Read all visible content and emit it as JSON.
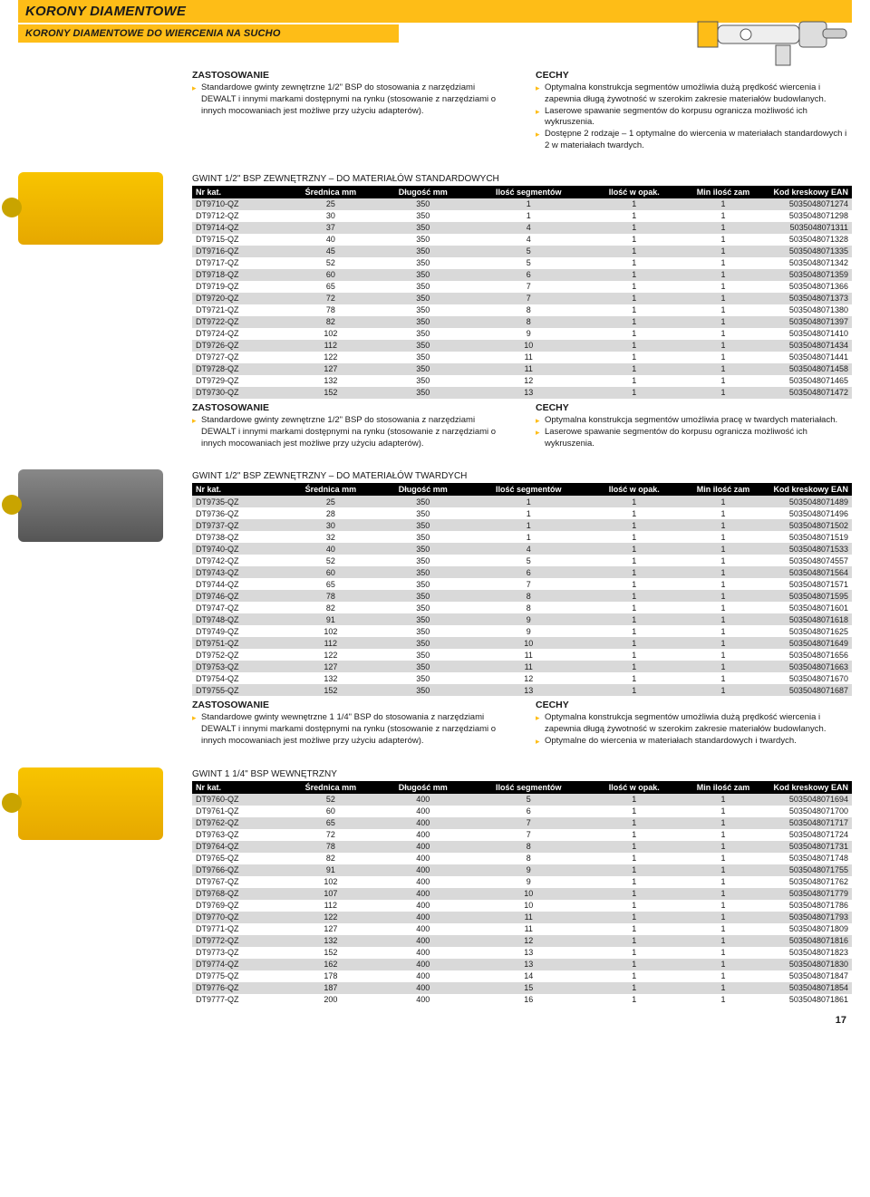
{
  "page_number": "17",
  "title_main": "KORONY DIAMENTOWE",
  "title_sub": "KORONY DIAMENTOWE DO WIERCENIA NA SUCHO",
  "columns": [
    "Nr kat.",
    "Średnica mm",
    "Długość mm",
    "Ilość segmentów",
    "Ilość w opak.",
    "Min ilość zam",
    "Kod kreskowy EAN"
  ],
  "col_align": [
    "l",
    "c",
    "c",
    "c",
    "c",
    "c",
    "r"
  ],
  "col_widths": [
    "14%",
    "14%",
    "14%",
    "18%",
    "14%",
    "13%",
    "13%"
  ],
  "colors": {
    "accent": "#febd17",
    "row_odd": "#d9d9d9",
    "row_even": "#ffffff",
    "header_bg": "#000000",
    "header_fg": "#ffffff"
  },
  "sections": [
    {
      "thumb": "yellow",
      "text": {
        "zast_h": "ZASTOSOWANIE",
        "zast": [
          "Standardowe gwinty zewnętrzne 1/2\" BSP do stosowania z narzędziami DEWALT i innymi markami dostępnymi na rynku (stosowanie z narzędziami o innych mocowaniach jest możliwe przy użyciu adapterów)."
        ],
        "cechy_h": "CECHY",
        "cechy": [
          "Optymalna konstrukcja segmentów umożliwia dużą prędkość wiercenia i zapewnia długą żywotność w szerokim zakresie materiałów budowlanych.",
          "Laserowe spawanie segmentów do korpusu ogranicza możliwość ich wykruszenia.",
          "Dostępne 2 rodzaje – 1 optymalne do wiercenia w materiałach standardowych i 2 w materiałach twardych."
        ]
      },
      "table_title": "GWINT 1/2\" BSP ZEWNĘTRZNY – DO MATERIAŁÓW STANDARDOWYCH",
      "rows": [
        [
          "DT9710-QZ",
          "25",
          "350",
          "1",
          "1",
          "1",
          "5035048071274"
        ],
        [
          "DT9712-QZ",
          "30",
          "350",
          "1",
          "1",
          "1",
          "5035048071298"
        ],
        [
          "DT9714-QZ",
          "37",
          "350",
          "4",
          "1",
          "1",
          "5035048071311"
        ],
        [
          "DT9715-QZ",
          "40",
          "350",
          "4",
          "1",
          "1",
          "5035048071328"
        ],
        [
          "DT9716-QZ",
          "45",
          "350",
          "5",
          "1",
          "1",
          "5035048071335"
        ],
        [
          "DT9717-QZ",
          "52",
          "350",
          "5",
          "1",
          "1",
          "5035048071342"
        ],
        [
          "DT9718-QZ",
          "60",
          "350",
          "6",
          "1",
          "1",
          "5035048071359"
        ],
        [
          "DT9719-QZ",
          "65",
          "350",
          "7",
          "1",
          "1",
          "5035048071366"
        ],
        [
          "DT9720-QZ",
          "72",
          "350",
          "7",
          "1",
          "1",
          "5035048071373"
        ],
        [
          "DT9721-QZ",
          "78",
          "350",
          "8",
          "1",
          "1",
          "5035048071380"
        ],
        [
          "DT9722-QZ",
          "82",
          "350",
          "8",
          "1",
          "1",
          "5035048071397"
        ],
        [
          "DT9724-QZ",
          "102",
          "350",
          "9",
          "1",
          "1",
          "5035048071410"
        ],
        [
          "DT9726-QZ",
          "112",
          "350",
          "10",
          "1",
          "1",
          "5035048071434"
        ],
        [
          "DT9727-QZ",
          "122",
          "350",
          "11",
          "1",
          "1",
          "5035048071441"
        ],
        [
          "DT9728-QZ",
          "127",
          "350",
          "11",
          "1",
          "1",
          "5035048071458"
        ],
        [
          "DT9729-QZ",
          "132",
          "350",
          "12",
          "1",
          "1",
          "5035048071465"
        ],
        [
          "DT9730-QZ",
          "152",
          "350",
          "13",
          "1",
          "1",
          "5035048071472"
        ]
      ]
    },
    {
      "thumb": "grey",
      "text": {
        "zast_h": "ZASTOSOWANIE",
        "zast": [
          "Standardowe gwinty zewnętrzne 1/2\" BSP do stosowania z narzędziami DEWALT i innymi markami dostępnymi na rynku (stosowanie z narzędziami o innych mocowaniach jest możliwe przy użyciu adapterów)."
        ],
        "cechy_h": "CECHY",
        "cechy": [
          "Optymalna konstrukcja segmentów umożliwia pracę w twardych materiałach.",
          "Laserowe spawanie segmentów do korpusu ogranicza możliwość ich wykruszenia."
        ]
      },
      "table_title": "GWINT 1/2\" BSP ZEWNĘTRZNY – DO MATERIAŁÓW TWARDYCH",
      "rows": [
        [
          "DT9735-QZ",
          "25",
          "350",
          "1",
          "1",
          "1",
          "5035048071489"
        ],
        [
          "DT9736-QZ",
          "28",
          "350",
          "1",
          "1",
          "1",
          "5035048071496"
        ],
        [
          "DT9737-QZ",
          "30",
          "350",
          "1",
          "1",
          "1",
          "5035048071502"
        ],
        [
          "DT9738-QZ",
          "32",
          "350",
          "1",
          "1",
          "1",
          "5035048071519"
        ],
        [
          "DT9740-QZ",
          "40",
          "350",
          "4",
          "1",
          "1",
          "5035048071533"
        ],
        [
          "DT9742-QZ",
          "52",
          "350",
          "5",
          "1",
          "1",
          "5035048074557"
        ],
        [
          "DT9743-QZ",
          "60",
          "350",
          "6",
          "1",
          "1",
          "5035048071564"
        ],
        [
          "DT9744-QZ",
          "65",
          "350",
          "7",
          "1",
          "1",
          "5035048071571"
        ],
        [
          "DT9746-QZ",
          "78",
          "350",
          "8",
          "1",
          "1",
          "5035048071595"
        ],
        [
          "DT9747-QZ",
          "82",
          "350",
          "8",
          "1",
          "1",
          "5035048071601"
        ],
        [
          "DT9748-QZ",
          "91",
          "350",
          "9",
          "1",
          "1",
          "5035048071618"
        ],
        [
          "DT9749-QZ",
          "102",
          "350",
          "9",
          "1",
          "1",
          "5035048071625"
        ],
        [
          "DT9751-QZ",
          "112",
          "350",
          "10",
          "1",
          "1",
          "5035048071649"
        ],
        [
          "DT9752-QZ",
          "122",
          "350",
          "11",
          "1",
          "1",
          "5035048071656"
        ],
        [
          "DT9753-QZ",
          "127",
          "350",
          "11",
          "1",
          "1",
          "5035048071663"
        ],
        [
          "DT9754-QZ",
          "132",
          "350",
          "12",
          "1",
          "1",
          "5035048071670"
        ],
        [
          "DT9755-QZ",
          "152",
          "350",
          "13",
          "1",
          "1",
          "5035048071687"
        ]
      ]
    },
    {
      "thumb": "yellow",
      "text": {
        "zast_h": "ZASTOSOWANIE",
        "zast": [
          "Standardowe gwinty wewnętrzne 1 1/4\" BSP do stosowania z narzędziami DEWALT i innymi markami dostępnymi na rynku (stosowanie z narzędziami o innych mocowaniach jest możliwe przy użyciu adapterów)."
        ],
        "cechy_h": "CECHY",
        "cechy": [
          "Optymalna konstrukcja segmentów umożliwia dużą prędkość wiercenia i zapewnia długą żywotność w szerokim zakresie materiałów budowlanych.",
          "Optymalne do wiercenia w materiałach standardowych i twardych."
        ]
      },
      "table_title": "GWINT 1 1/4\" BSP WEWNĘTRZNY",
      "rows": [
        [
          "DT9760-QZ",
          "52",
          "400",
          "5",
          "1",
          "1",
          "5035048071694"
        ],
        [
          "DT9761-QZ",
          "60",
          "400",
          "6",
          "1",
          "1",
          "5035048071700"
        ],
        [
          "DT9762-QZ",
          "65",
          "400",
          "7",
          "1",
          "1",
          "5035048071717"
        ],
        [
          "DT9763-QZ",
          "72",
          "400",
          "7",
          "1",
          "1",
          "5035048071724"
        ],
        [
          "DT9764-QZ",
          "78",
          "400",
          "8",
          "1",
          "1",
          "5035048071731"
        ],
        [
          "DT9765-QZ",
          "82",
          "400",
          "8",
          "1",
          "1",
          "5035048071748"
        ],
        [
          "DT9766-QZ",
          "91",
          "400",
          "9",
          "1",
          "1",
          "5035048071755"
        ],
        [
          "DT9767-QZ",
          "102",
          "400",
          "9",
          "1",
          "1",
          "5035048071762"
        ],
        [
          "DT9768-QZ",
          "107",
          "400",
          "10",
          "1",
          "1",
          "5035048071779"
        ],
        [
          "DT9769-QZ",
          "112",
          "400",
          "10",
          "1",
          "1",
          "5035048071786"
        ],
        [
          "DT9770-QZ",
          "122",
          "400",
          "11",
          "1",
          "1",
          "5035048071793"
        ],
        [
          "DT9771-QZ",
          "127",
          "400",
          "11",
          "1",
          "1",
          "5035048071809"
        ],
        [
          "DT9772-QZ",
          "132",
          "400",
          "12",
          "1",
          "1",
          "5035048071816"
        ],
        [
          "DT9773-QZ",
          "152",
          "400",
          "13",
          "1",
          "1",
          "5035048071823"
        ],
        [
          "DT9774-QZ",
          "162",
          "400",
          "13",
          "1",
          "1",
          "5035048071830"
        ],
        [
          "DT9775-QZ",
          "178",
          "400",
          "14",
          "1",
          "1",
          "5035048071847"
        ],
        [
          "DT9776-QZ",
          "187",
          "400",
          "15",
          "1",
          "1",
          "5035048071854"
        ],
        [
          "DT9777-QZ",
          "200",
          "400",
          "16",
          "1",
          "1",
          "5035048071861"
        ]
      ]
    }
  ]
}
